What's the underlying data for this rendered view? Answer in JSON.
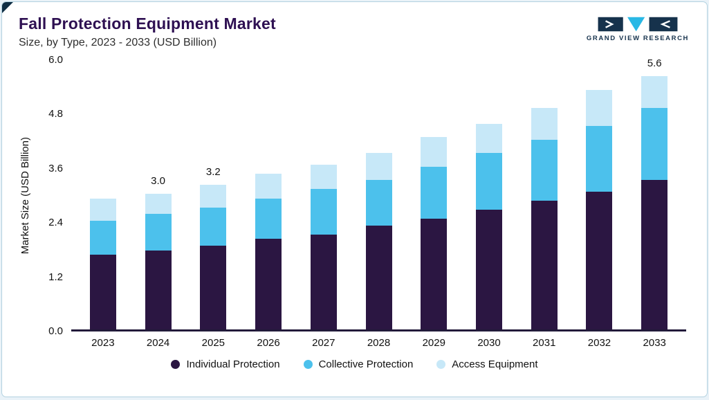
{
  "page": {
    "title": "Fall Protection Equipment Market",
    "subtitle": "Size, by Type, 2023 - 2033 (USD Billion)",
    "logo_text": "GRAND VIEW RESEARCH"
  },
  "colors": {
    "accent_dark_purple": "#2b1642",
    "accent_cyan": "#4cc1ec",
    "accent_light_blue": "#c7e8f8",
    "axis_line": "#221a3a",
    "card_border": "#b3d2e0"
  },
  "chart_data": {
    "type": "bar",
    "stacked": true,
    "title": "Fall Protection Equipment Market Size, by Type, 2023 - 2033 (USD Billion)",
    "xlabel": "",
    "ylabel": "Market Size (USD Billion)",
    "ylim": [
      0,
      6.0
    ],
    "yticks": [
      "6.0",
      "4.8",
      "3.6",
      "2.4",
      "1.2",
      "0.0"
    ],
    "grid": false,
    "legend_position": "bottom",
    "categories": [
      "2023",
      "2024",
      "2025",
      "2026",
      "2027",
      "2028",
      "2029",
      "2030",
      "2031",
      "2032",
      "2033"
    ],
    "series": [
      {
        "name": "Individual Protection",
        "color": "#2b1642",
        "values": [
          1.65,
          1.75,
          1.85,
          2.0,
          2.1,
          2.3,
          2.45,
          2.65,
          2.85,
          3.05,
          3.3
        ]
      },
      {
        "name": "Collective Protection",
        "color": "#4cc1ec",
        "values": [
          0.75,
          0.8,
          0.85,
          0.9,
          1.0,
          1.0,
          1.15,
          1.25,
          1.35,
          1.45,
          1.6
        ]
      },
      {
        "name": "Access Equipment",
        "color": "#c7e8f8",
        "values": [
          0.5,
          0.45,
          0.5,
          0.55,
          0.55,
          0.6,
          0.65,
          0.65,
          0.7,
          0.8,
          0.7
        ]
      }
    ],
    "totals": [
      2.9,
      3.0,
      3.2,
      3.45,
      3.65,
      3.9,
      4.25,
      4.55,
      4.9,
      5.3,
      5.6
    ],
    "annotations": {
      "2024": "3.0",
      "2025": "3.2",
      "2033": "5.6"
    }
  }
}
